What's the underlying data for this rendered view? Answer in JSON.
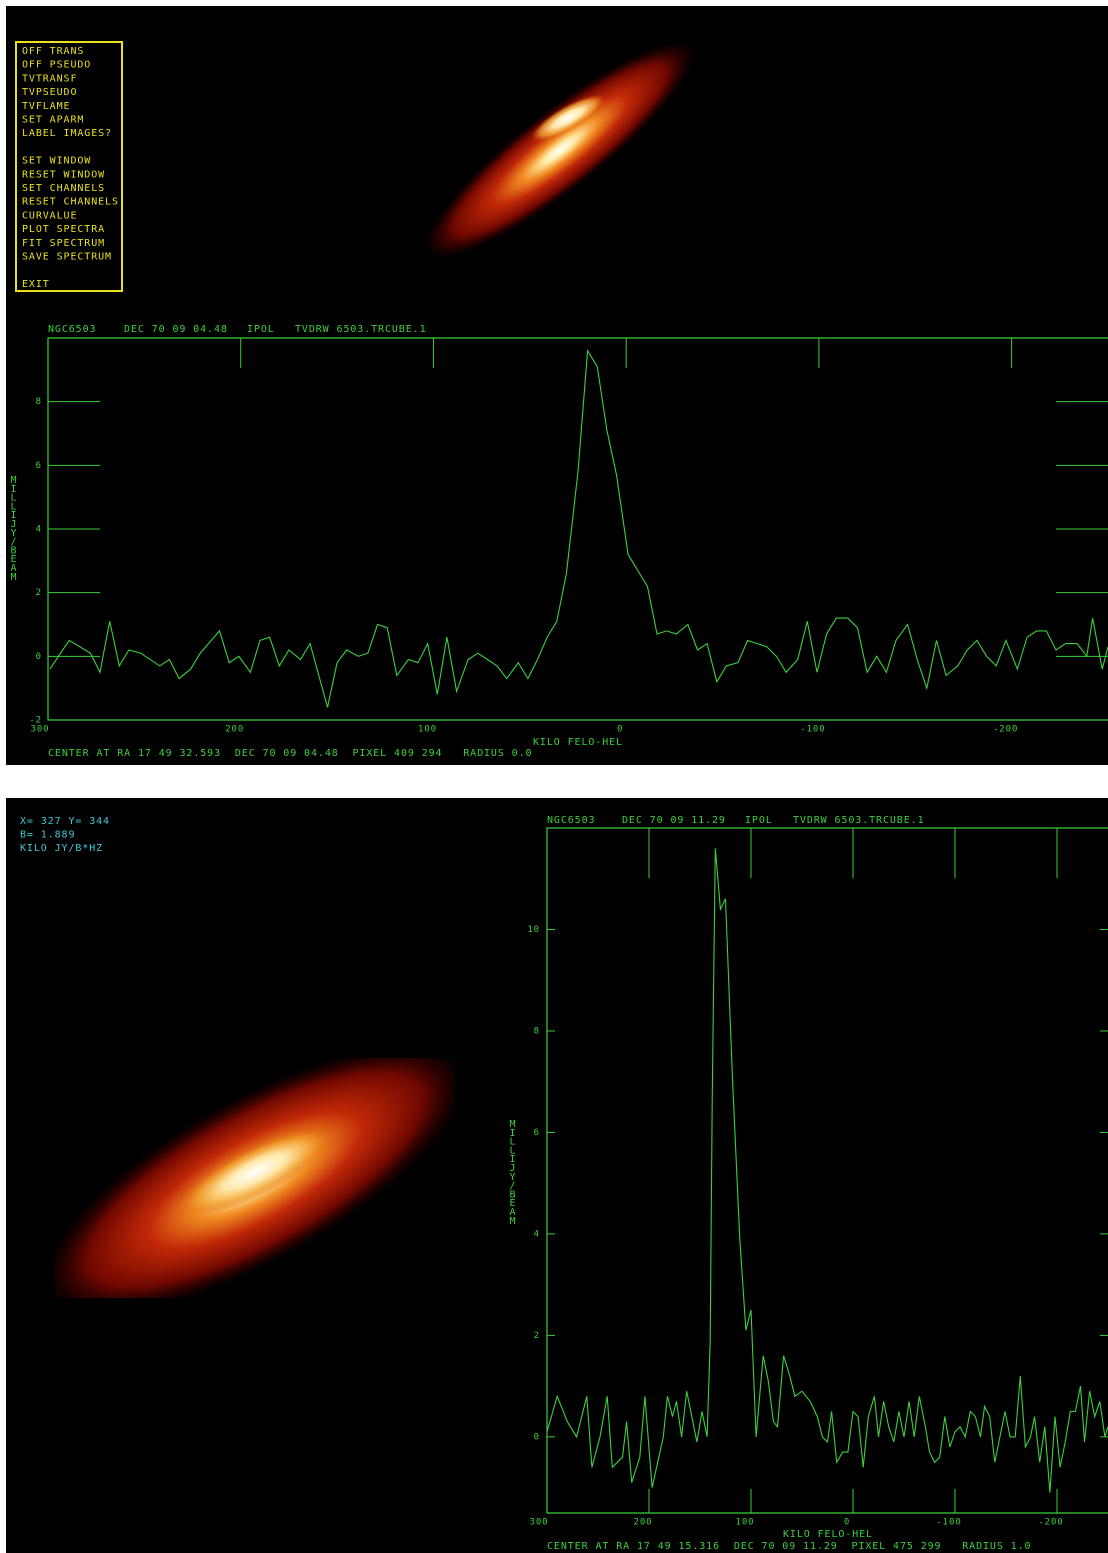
{
  "menu": {
    "items": [
      "OFF TRANS",
      "OFF PSEUDO",
      "TVTRANSF",
      "TVPSEUDO",
      "TVFLAME",
      "SET APARM",
      "LABEL IMAGES?",
      "SET WINDOW",
      "RESET WINDOW",
      "SET CHANNELS",
      "RESET CHANNELS",
      "CURVALUE",
      "PLOT SPECTRA",
      "FIT SPECTRUM",
      "SAVE SPECTRUM",
      "EXIT"
    ]
  },
  "cursor_info": [
    "X= 327 Y= 344",
    "B=   1.889",
    "KILO JY/B*HZ"
  ],
  "chart_data": [
    {
      "type": "line",
      "header": [
        "NGC6503",
        "DEC 70 09 04.48",
        "IPOL",
        "TVDRW 6503.TRCUBE.1"
      ],
      "footer": "CENTER AT RA 17 49 32.593  DEC 70 09 04.48  PIXEL 409 294   RADIUS 0.0",
      "xlabel": "KILO FELO-HEL",
      "ylabel": "MILLIJY/BEAM",
      "color": "#3cd03c",
      "xlim": [
        300,
        -250
      ],
      "xticks": [
        300,
        200,
        100,
        0,
        -100,
        -200
      ],
      "ylim": [
        -2,
        10
      ],
      "yticks": [
        -2,
        0,
        2,
        4,
        6,
        8
      ],
      "x": [
        299,
        289,
        278,
        273,
        268,
        263,
        258,
        252,
        242,
        237,
        232,
        226,
        221,
        211,
        206,
        201,
        195,
        190,
        185,
        180,
        175,
        169,
        164,
        155,
        150,
        145,
        139,
        134,
        129,
        124,
        119,
        113,
        108,
        103,
        98,
        93,
        88,
        82,
        77,
        72,
        67,
        62,
        56,
        51,
        46,
        41,
        36,
        31,
        25,
        20,
        15,
        10,
        5,
        -1,
        -6,
        -11,
        -16,
        -21,
        -26,
        -32,
        -37,
        -42,
        -47,
        -52,
        -58,
        -63,
        -68,
        -73,
        -78,
        -83,
        -89,
        -94,
        -99,
        -104,
        -109,
        -115,
        -120,
        -125,
        -130,
        -135,
        -140,
        -146,
        -151,
        -156,
        -161,
        -166,
        -172,
        -177,
        -182,
        -187,
        -192,
        -197,
        -203,
        -208,
        -213,
        -218,
        -223,
        -228,
        -234,
        -239,
        -242,
        -247,
        -250
      ],
      "values": [
        -0.4,
        0.5,
        0.1,
        -0.5,
        1.1,
        -0.3,
        0.2,
        0.1,
        -0.3,
        -0.1,
        -0.7,
        -0.4,
        0.1,
        0.8,
        -0.2,
        0,
        -0.5,
        0.5,
        0.6,
        -0.3,
        0.2,
        -0.1,
        0.4,
        -1.6,
        -0.2,
        0.2,
        0,
        0.1,
        1.0,
        0.9,
        -0.6,
        -0.1,
        -0.2,
        0.4,
        -1.2,
        0.6,
        -1.1,
        -0.1,
        0.1,
        -0.1,
        -0.3,
        -0.7,
        -0.2,
        -0.7,
        -0.1,
        0.6,
        1.1,
        2.6,
        5.8,
        9.6,
        9.1,
        7.1,
        5.7,
        3.2,
        2.7,
        2.2,
        0.7,
        0.8,
        0.7,
        1.0,
        0.2,
        0.4,
        -0.8,
        -0.3,
        -0.2,
        0.5,
        0.4,
        0.3,
        0,
        -0.5,
        -0.1,
        1.1,
        -0.5,
        0.7,
        1.2,
        1.2,
        0.9,
        -0.5,
        0,
        -0.5,
        0.5,
        1.0,
        -0.1,
        -1.0,
        0.5,
        -0.6,
        -0.3,
        0.2,
        0.5,
        0,
        -0.3,
        0.5,
        -0.4,
        0.6,
        0.8,
        0.8,
        0.2,
        0.4,
        0.4,
        0,
        1.2,
        -0.4,
        0.3
      ]
    },
    {
      "type": "line",
      "header": [
        "NGC6503",
        "DEC 70 09 11.29",
        "IPOL",
        "TVDRW 6503.TRCUBE.1"
      ],
      "footer": "CENTER AT RA 17 49 15.316  DEC 70 09 11.29  PIXEL 475 299   RADIUS 1.0",
      "xlabel": "KILO FELO-HEL",
      "ylabel": "MILLIJY/BEAM",
      "color": "#3cd03c",
      "xlim": [
        300,
        -250
      ],
      "xticks": [
        300,
        200,
        100,
        0,
        -100,
        -200
      ],
      "ylim": [
        -1.5,
        12
      ],
      "yticks": [
        0,
        2,
        4,
        6,
        8,
        10
      ],
      "x": [
        300,
        290,
        280,
        271,
        261,
        256,
        248,
        241,
        236,
        226,
        222,
        217,
        209,
        204,
        197,
        186,
        182,
        177,
        173,
        168,
        163,
        158,
        153,
        148,
        143,
        140,
        138,
        135,
        130,
        125,
        118,
        111,
        105,
        100,
        95,
        88,
        83,
        78,
        74,
        68,
        62,
        57,
        50,
        42,
        35,
        30,
        25,
        21,
        16,
        10,
        5,
        0,
        -5,
        -10,
        -15,
        -21,
        -25,
        -30,
        -35,
        -40,
        -45,
        -50,
        -55,
        -60,
        -65,
        -71,
        -75,
        -80,
        -85,
        -90,
        -95,
        -100,
        -105,
        -110,
        -115,
        -120,
        -125,
        -129,
        -134,
        -139,
        -144,
        -149,
        -154,
        -159,
        -164,
        -169,
        -174,
        -178,
        -183,
        -188,
        -193,
        -198,
        -203,
        -208,
        -213,
        -218,
        -223,
        -227,
        -232,
        -237,
        -242,
        -247,
        -250
      ],
      "values": [
        0.1,
        0.8,
        0.3,
        0,
        0.8,
        -0.6,
        0,
        0.8,
        -0.6,
        -0.4,
        0.3,
        -0.9,
        -0.4,
        0.8,
        -1.0,
        0,
        0.8,
        0.4,
        0.7,
        0,
        0.9,
        0.4,
        -0.1,
        0.5,
        0,
        1.9,
        6.6,
        11.6,
        10.4,
        10.6,
        7.0,
        3.9,
        2.1,
        2.5,
        0,
        1.6,
        1.1,
        0.3,
        0.2,
        1.6,
        1.2,
        0.8,
        0.9,
        0.7,
        0.4,
        0,
        -0.1,
        0.5,
        -0.5,
        -0.3,
        -0.3,
        0.5,
        0.4,
        -0.6,
        0.4,
        0.8,
        0,
        0.7,
        0.2,
        -0.1,
        0.5,
        0,
        0.7,
        0,
        0.8,
        0.2,
        -0.3,
        -0.5,
        -0.4,
        0.4,
        -0.2,
        0.1,
        0.2,
        0,
        0.5,
        0.4,
        0,
        0.6,
        0.4,
        -0.5,
        0,
        0.5,
        0,
        0,
        1.2,
        -0.2,
        0,
        0.4,
        -0.5,
        0.2,
        -1.1,
        0.4,
        -0.6,
        -0.1,
        0.5,
        0.5,
        1.0,
        -0.1,
        0.9,
        0.4,
        0.7,
        0,
        0.2
      ]
    }
  ]
}
